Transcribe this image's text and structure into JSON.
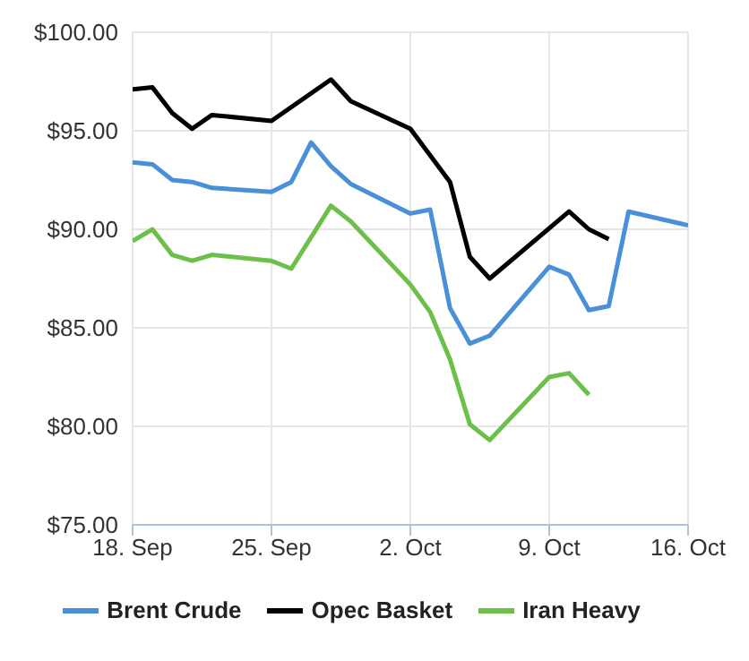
{
  "chart_data": {
    "type": "line",
    "xlim": [
      "--09-18",
      "--10-16"
    ],
    "xticks": [
      {
        "value": "--09-18",
        "label": "18. Sep"
      },
      {
        "value": "--09-25",
        "label": "25. Sep"
      },
      {
        "value": "--10-02",
        "label": "2. Oct"
      },
      {
        "value": "--10-09",
        "label": "9. Oct"
      },
      {
        "value": "--10-16",
        "label": "16. Oct"
      }
    ],
    "ylim": [
      75,
      100
    ],
    "yticks": [
      {
        "value": 75,
        "label": "$75.00"
      },
      {
        "value": 80,
        "label": "$80.00"
      },
      {
        "value": 85,
        "label": "$85.00"
      },
      {
        "value": 90,
        "label": "$90.00"
      },
      {
        "value": 95,
        "label": "$95.00"
      },
      {
        "value": 100,
        "label": "$100.00"
      }
    ],
    "grid": true,
    "legend": "bottom",
    "marker": "none",
    "line_style": "solid",
    "series": [
      {
        "name": "Brent Crude",
        "color": "#4a90d9",
        "x": [
          "--09-18",
          "--09-19",
          "--09-20",
          "--09-21",
          "--09-22",
          "--09-25",
          "--09-26",
          "--09-27",
          "--09-28",
          "--09-29",
          "--10-02",
          "--10-03",
          "--10-04",
          "--10-05",
          "--10-06",
          "--10-09",
          "--10-10",
          "--10-11",
          "--10-12",
          "--10-13",
          "--10-16"
        ],
        "values": [
          93.4,
          93.3,
          92.5,
          92.4,
          92.1,
          91.9,
          92.4,
          94.4,
          93.2,
          92.3,
          90.8,
          91.0,
          86.0,
          84.2,
          84.6,
          88.1,
          87.7,
          85.9,
          86.1,
          90.9,
          90.2
        ]
      },
      {
        "name": "Opec Basket",
        "color": "#000000",
        "x": [
          "--09-18",
          "--09-19",
          "--09-20",
          "--09-21",
          "--09-22",
          "--09-25",
          "--09-28",
          "--09-29",
          "--10-02",
          "--10-04",
          "--10-05",
          "--10-06",
          "--10-10",
          "--10-11",
          "--10-12"
        ],
        "values": [
          97.1,
          97.2,
          95.9,
          95.1,
          95.8,
          95.5,
          97.6,
          96.5,
          95.1,
          92.4,
          88.6,
          87.5,
          90.9,
          90.0,
          89.5
        ]
      },
      {
        "name": "Iran Heavy",
        "color": "#6cc04a",
        "x": [
          "--09-18",
          "--09-19",
          "--09-20",
          "--09-21",
          "--09-22",
          "--09-25",
          "--09-26",
          "--09-28",
          "--09-29",
          "--10-02",
          "--10-03",
          "--10-04",
          "--10-05",
          "--10-06",
          "--10-09",
          "--10-10",
          "--10-11"
        ],
        "values": [
          89.4,
          90.0,
          88.7,
          88.4,
          88.7,
          88.4,
          88.0,
          91.2,
          90.4,
          87.2,
          85.8,
          83.4,
          80.1,
          79.3,
          82.5,
          82.7,
          81.6
        ]
      }
    ]
  }
}
